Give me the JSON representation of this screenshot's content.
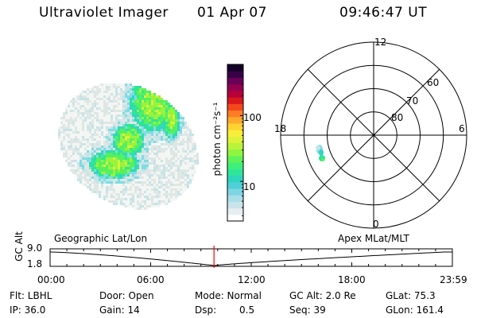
{
  "header": {
    "instrument": "Ultraviolet Imager",
    "date": "01 Apr 07",
    "time": "09:46:47 UT"
  },
  "colorbar": {
    "label": "photon cm⁻²s⁻¹",
    "tick_labels": [
      "100",
      "10"
    ],
    "tick_values": [
      100,
      10
    ],
    "range": [
      2.5,
      600
    ],
    "colors": [
      "#ffffff",
      "#e6eef0",
      "#c9e3ea",
      "#a9dde8",
      "#7fd6e2",
      "#4fd0d8",
      "#2ed6bd",
      "#2ee59a",
      "#3ef07a",
      "#5ff35a",
      "#8ef540",
      "#b8f33a",
      "#dff23a",
      "#f8ee3a",
      "#ffd234",
      "#ffaa2c",
      "#ff7d24",
      "#f4481e",
      "#d8181c",
      "#b8003a",
      "#940050",
      "#6b0058",
      "#3a0048",
      "#140028"
    ]
  },
  "polar": {
    "mlt_labels": {
      "top": "12",
      "left": "18",
      "right": "6",
      "bottom": "0"
    },
    "lat_labels": [
      "60",
      "70",
      "80"
    ],
    "lat_values": [
      60,
      70,
      80
    ],
    "outer_lat": 50
  },
  "timeline": {
    "left_title": "Geographic Lat/Lon",
    "right_title": "Apex  MLat/MLT",
    "axis_label": "GC Alt",
    "y_max": "9.0",
    "y_min": "1.8",
    "time_labels": [
      "00:00",
      "06:00",
      "12:00",
      "18:00",
      "23:59"
    ],
    "cursor_time": "09:46:47",
    "cursor_color": "#ff0000"
  },
  "info": {
    "flt": "Flt: LBHL",
    "ip": "IP: 36.0",
    "door": "Door: Open",
    "gain": "Gain: 14",
    "mode": "Mode: Normal",
    "dsp_label": "Dsp:",
    "dsp_value": "0.5",
    "gcalt": "GC Alt: 2.0 Re",
    "seq": "Seq: 39",
    "glat": "GLat:  75.3",
    "glon": "GLon: 161.4"
  }
}
